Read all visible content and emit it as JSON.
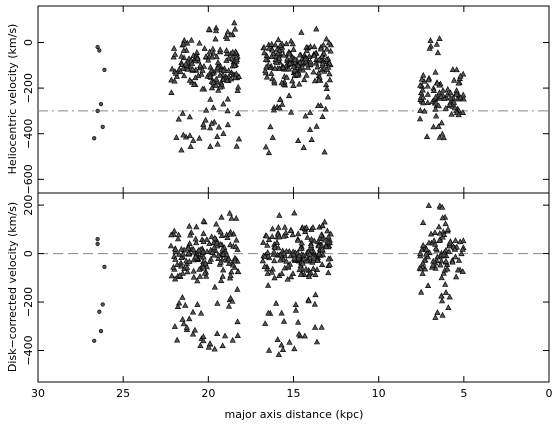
{
  "chart_data": {
    "type": "scatter",
    "xlabel": "major axis distance (kpc)",
    "xlim": [
      30,
      0
    ],
    "x_ticks": [
      30,
      25,
      20,
      15,
      10,
      5,
      0
    ],
    "x_tick_labels": [
      "30",
      "25",
      "20",
      "15",
      "10",
      "5",
      "0"
    ],
    "marker_colors": {
      "fill": "#555555",
      "stroke": "#000000"
    },
    "reference_line_color": "#888888",
    "panels": [
      {
        "id": "top",
        "ylabel": "Heliocentric velocity (km/s)",
        "ylim": [
          -660,
          160
        ],
        "y_ticks": [
          0,
          -200,
          -400,
          -600
        ],
        "y_tick_labels": [
          "0",
          "−200",
          "−400",
          "−600"
        ],
        "reference_line": -300,
        "reference_dash": "dash-dot",
        "series": [
          {
            "marker": "circle",
            "points": [
              [
                26.5,
                -20
              ],
              [
                26.4,
                -35
              ],
              [
                26.1,
                -120
              ],
              [
                26.3,
                -270
              ],
              [
                26.5,
                -300
              ],
              [
                26.2,
                -370
              ],
              [
                26.7,
                -420
              ]
            ]
          },
          {
            "marker": "triangle",
            "clusters": [
              {
                "x_range": [
                  18.2,
                  22.2
                ],
                "y_mean": -110,
                "y_spread": 55,
                "n": 150,
                "seed": 11
              },
              {
                "x_range": [
                  18.2,
                  22.0
                ],
                "y_range": [
                  -480,
                  -260
                ],
                "n": 30,
                "seed": 12
              },
              {
                "x_range": [
                  18.5,
                  20.0
                ],
                "y_range": [
                  0,
                  100
                ],
                "n": 10,
                "seed": 13
              },
              {
                "x_range": [
                  12.8,
                  16.8
                ],
                "y_mean": -85,
                "y_spread": 50,
                "n": 190,
                "seed": 21
              },
              {
                "x_range": [
                  13.0,
                  16.8
                ],
                "y_range": [
                  -500,
                  -230
                ],
                "n": 25,
                "seed": 22
              },
              {
                "x_range": [
                  5.0,
                  7.6
                ],
                "y_mean": -235,
                "y_spread": 55,
                "n": 85,
                "seed": 31
              },
              {
                "x_range": [
                  6.3,
                  7.2
                ],
                "y_range": [
                  -60,
                  20
                ],
                "n": 6,
                "seed": 32
              },
              {
                "x_range": [
                  5.7,
                  7.6
                ],
                "y_range": [
                  -440,
                  -360
                ],
                "n": 6,
                "seed": 33
              }
            ]
          }
        ]
      },
      {
        "id": "bottom",
        "ylabel": "Disk−corrected velocity (km/s)",
        "ylim": [
          -530,
          250
        ],
        "y_ticks": [
          200,
          0,
          -200,
          -400
        ],
        "y_tick_labels": [
          "200",
          "0",
          "−200",
          "−400"
        ],
        "reference_line": 0,
        "reference_dash": "dash",
        "series": [
          {
            "marker": "circle",
            "points": [
              [
                26.5,
                60
              ],
              [
                26.5,
                40
              ],
              [
                26.1,
                -55
              ],
              [
                26.2,
                -210
              ],
              [
                26.4,
                -240
              ],
              [
                26.3,
                -320
              ],
              [
                26.7,
                -360
              ]
            ]
          },
          {
            "marker": "triangle",
            "clusters": [
              {
                "x_range": [
                  18.2,
                  22.2
                ],
                "y_mean": -10,
                "y_spread": 55,
                "n": 150,
                "seed": 41
              },
              {
                "x_range": [
                  18.2,
                  22.0
                ],
                "y_range": [
                  -400,
                  -180
                ],
                "n": 35,
                "seed": 42
              },
              {
                "x_range": [
                  18.3,
                  19.8
                ],
                "y_range": [
                  60,
                  170
                ],
                "n": 10,
                "seed": 43
              },
              {
                "x_range": [
                  12.8,
                  16.8
                ],
                "y_mean": 5,
                "y_spread": 55,
                "n": 190,
                "seed": 51
              },
              {
                "x_range": [
                  13.2,
                  16.8
                ],
                "y_range": [
                  -420,
                  -190
                ],
                "n": 25,
                "seed": 52
              },
              {
                "x_range": [
                  5.0,
                  7.6
                ],
                "y_mean": 5,
                "y_spread": 60,
                "n": 85,
                "seed": 61
              },
              {
                "x_range": [
                  6.0,
                  7.5
                ],
                "y_range": [
                  110,
                  200
                ],
                "n": 8,
                "seed": 62
              },
              {
                "x_range": [
                  5.5,
                  7.6
                ],
                "y_range": [
                  -290,
                  -160
                ],
                "n": 10,
                "seed": 63
              }
            ]
          }
        ]
      }
    ]
  }
}
